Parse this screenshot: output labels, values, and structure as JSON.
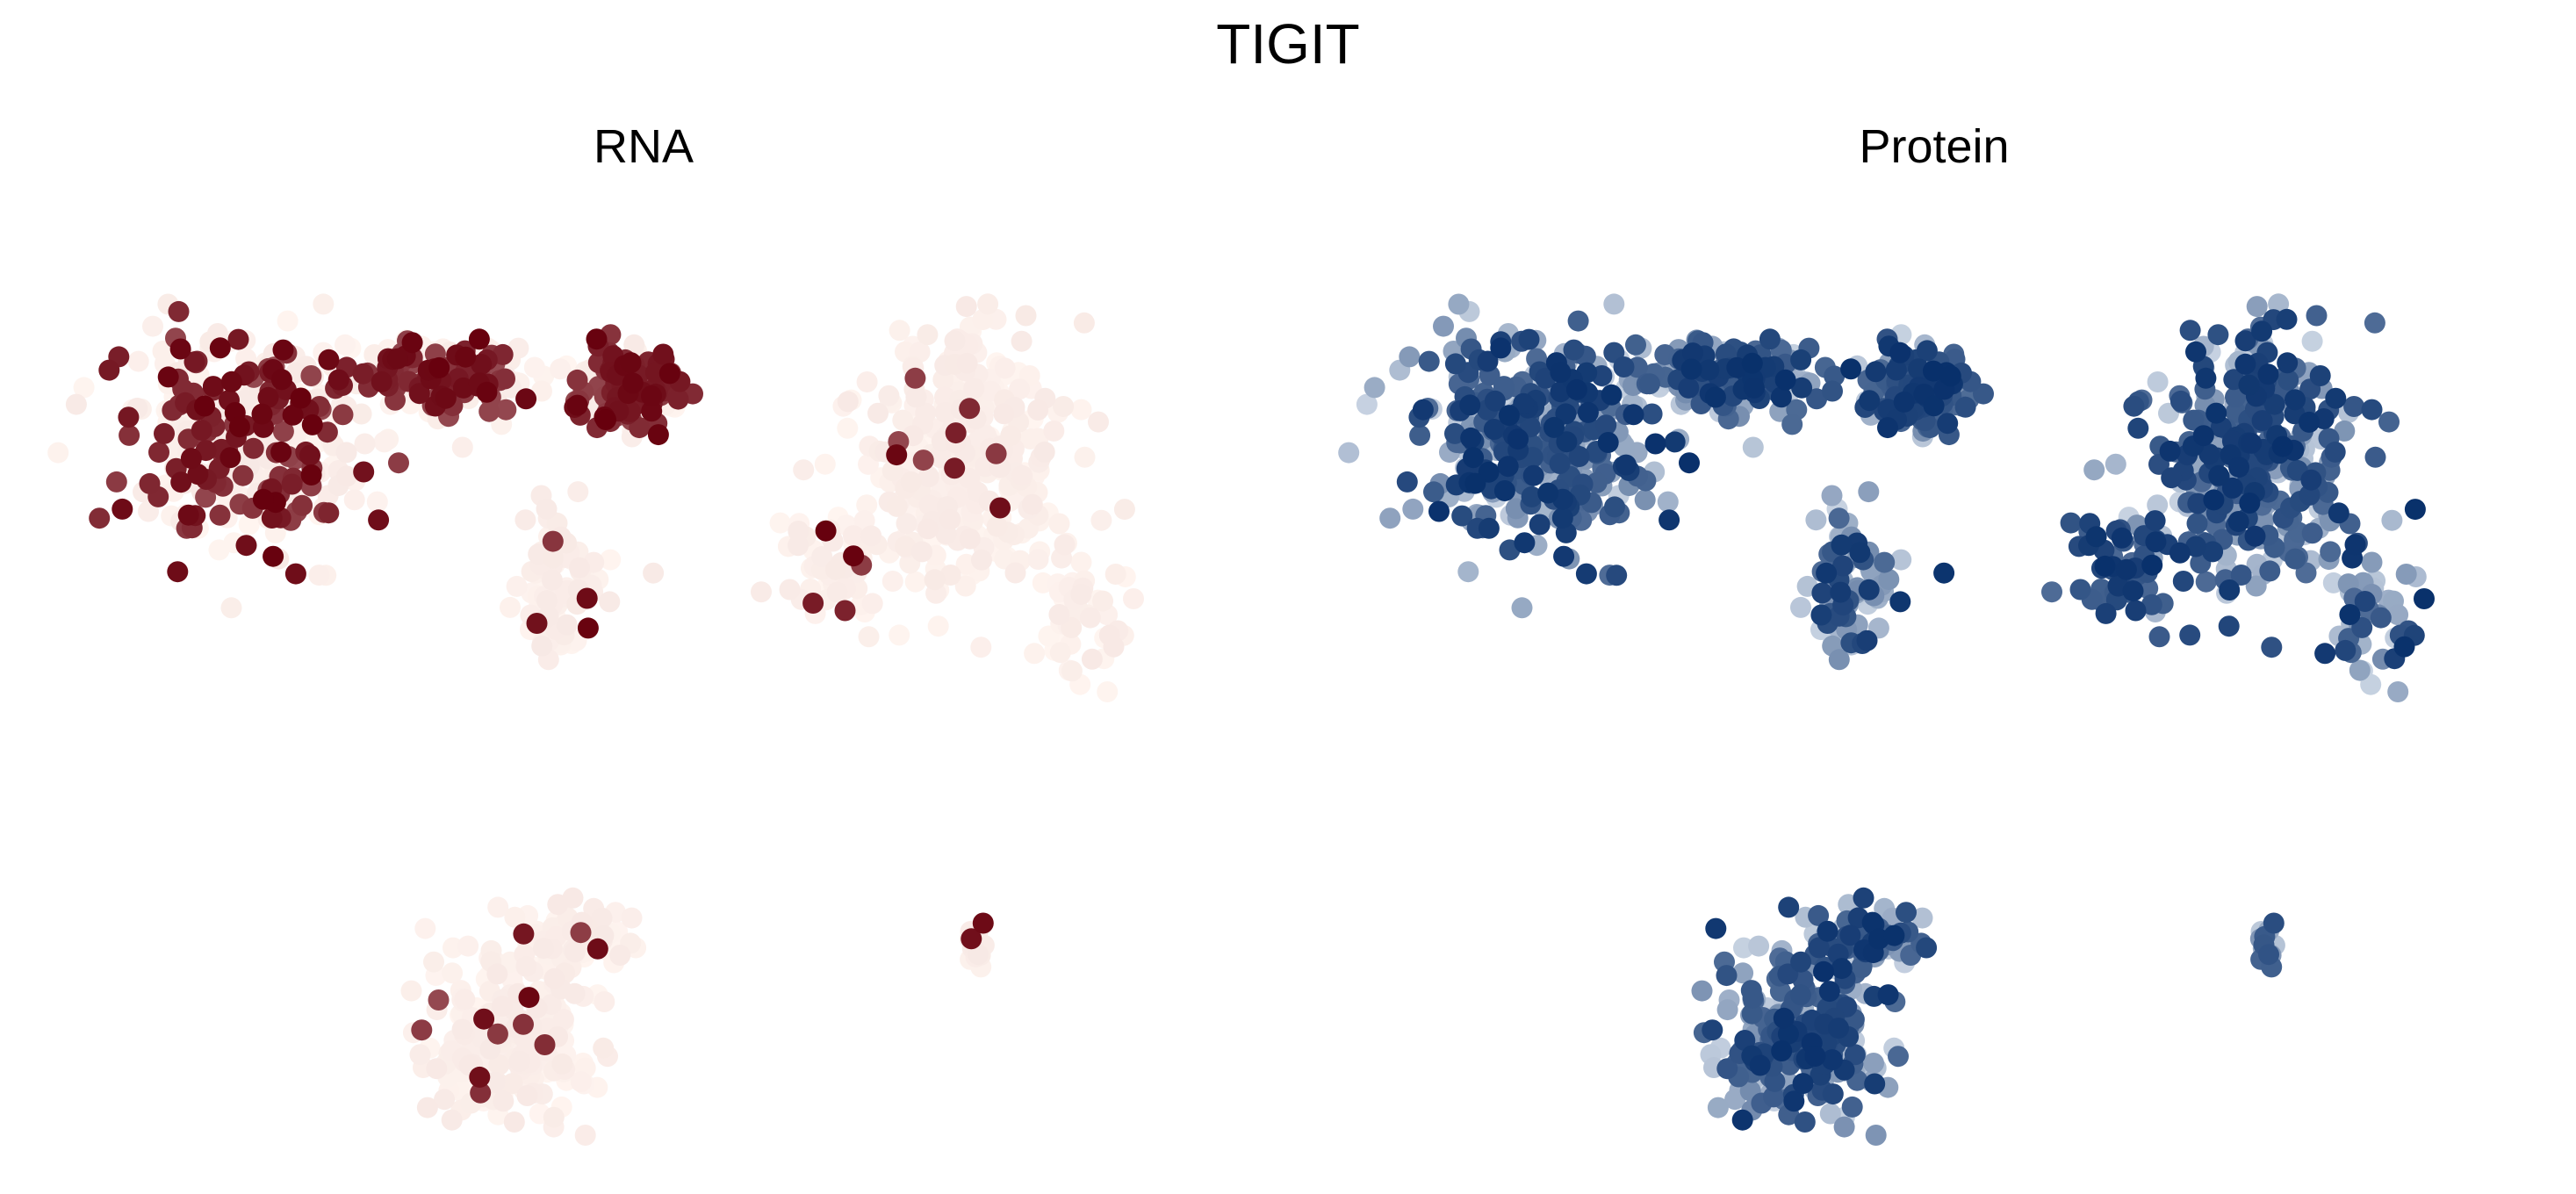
{
  "chart_data": {
    "type": "scatter",
    "title": "TIGIT",
    "panels": [
      {
        "title": "RNA",
        "colormap": "Reds",
        "color_low": "#fff5f0",
        "color_high": "#67000d",
        "clusters": [
          {
            "center": [
              -5.2,
              3.0
            ],
            "spread": [
              1.6,
              1.3
            ],
            "points": 380,
            "high_fraction": 0.35
          },
          {
            "center": [
              -2.6,
              3.8
            ],
            "spread": [
              1.1,
              0.45
            ],
            "points": 170,
            "high_fraction": 0.45
          },
          {
            "center": [
              -0.2,
              3.6
            ],
            "spread": [
              0.6,
              0.55
            ],
            "points": 160,
            "high_fraction": 0.55
          },
          {
            "center": [
              -1.1,
              0.9
            ],
            "spread": [
              0.55,
              0.9
            ],
            "points": 90,
            "high_fraction": 0.05
          },
          {
            "center": [
              4.2,
              2.6
            ],
            "spread": [
              1.2,
              1.6
            ],
            "points": 330,
            "high_fraction": 0.03
          },
          {
            "center": [
              2.6,
              1.1
            ],
            "spread": [
              0.7,
              0.7
            ],
            "points": 60,
            "high_fraction": 0.1
          },
          {
            "center": [
              5.8,
              0.4
            ],
            "spread": [
              0.5,
              0.8
            ],
            "points": 50,
            "high_fraction": 0.02
          },
          {
            "center": [
              -1.7,
              -5.6
            ],
            "spread": [
              1.0,
              1.0
            ],
            "points": 230,
            "high_fraction": 0.05
          },
          {
            "center": [
              -0.9,
              -4.2
            ],
            "spread": [
              0.7,
              0.5
            ],
            "points": 70,
            "high_fraction": 0.08
          },
          {
            "center": [
              4.4,
              -4.2
            ],
            "spread": [
              0.12,
              0.35
            ],
            "points": 14,
            "high_fraction": 0.05
          }
        ]
      },
      {
        "title": "Protein",
        "colormap": "Blues",
        "color_low": "#f7fbff",
        "color_high": "#08306b",
        "clusters": [
          {
            "center": [
              -5.2,
              3.0
            ],
            "spread": [
              1.6,
              1.3
            ],
            "points": 380,
            "high_fraction": 0.55
          },
          {
            "center": [
              -2.6,
              3.8
            ],
            "spread": [
              1.1,
              0.45
            ],
            "points": 170,
            "high_fraction": 0.55
          },
          {
            "center": [
              -0.2,
              3.6
            ],
            "spread": [
              0.6,
              0.55
            ],
            "points": 160,
            "high_fraction": 0.75
          },
          {
            "center": [
              -1.1,
              0.9
            ],
            "spread": [
              0.55,
              0.9
            ],
            "points": 90,
            "high_fraction": 0.3
          },
          {
            "center": [
              4.2,
              2.6
            ],
            "spread": [
              1.2,
              1.6
            ],
            "points": 330,
            "high_fraction": 0.65
          },
          {
            "center": [
              2.6,
              1.1
            ],
            "spread": [
              0.7,
              0.7
            ],
            "points": 60,
            "high_fraction": 0.75
          },
          {
            "center": [
              5.8,
              0.4
            ],
            "spread": [
              0.5,
              0.8
            ],
            "points": 50,
            "high_fraction": 0.4
          },
          {
            "center": [
              -1.7,
              -5.6
            ],
            "spread": [
              1.0,
              1.0
            ],
            "points": 230,
            "high_fraction": 0.55
          },
          {
            "center": [
              -0.9,
              -4.2
            ],
            "spread": [
              0.7,
              0.5
            ],
            "points": 70,
            "high_fraction": 0.6
          },
          {
            "center": [
              4.4,
              -4.2
            ],
            "spread": [
              0.12,
              0.35
            ],
            "points": 14,
            "high_fraction": 0.4
          }
        ]
      }
    ],
    "xlim": [
      -7.5,
      7.5
    ],
    "ylim": [
      -7.0,
      6.0
    ],
    "axes_visible": false,
    "grid": false,
    "legend": "none"
  }
}
